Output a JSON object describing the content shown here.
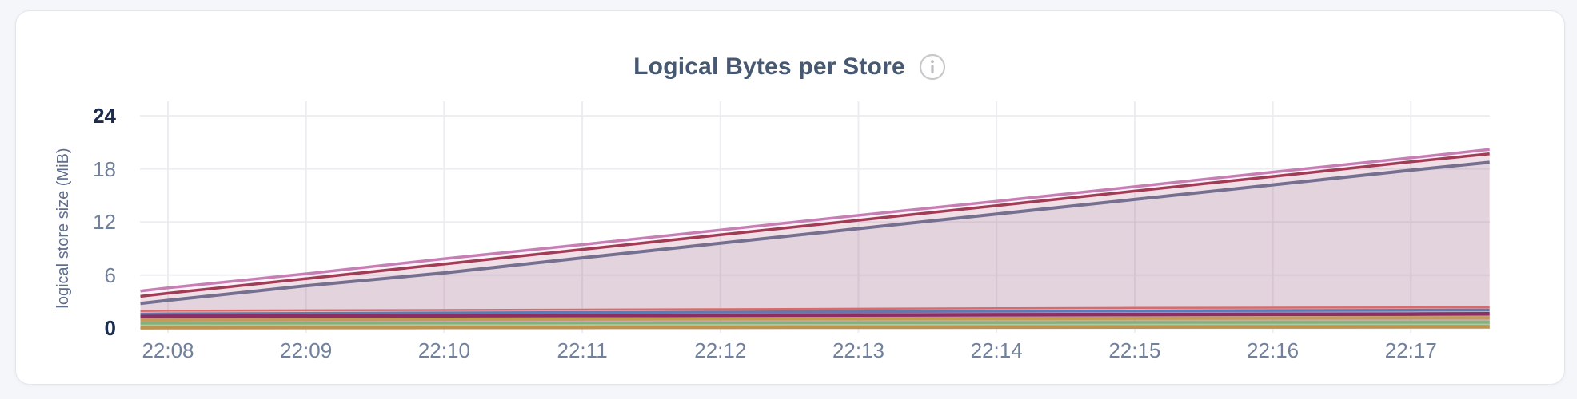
{
  "page": {
    "background": "#f4f6fa"
  },
  "card": {
    "title": "Logical Bytes per Store",
    "info_icon": "info-icon"
  },
  "chart_data": {
    "type": "area",
    "title": "Logical Bytes per Store",
    "xlabel": "",
    "ylabel": "logical store size (MiB)",
    "ylim": [
      0,
      24
    ],
    "grid": true,
    "legend_position": "none",
    "y_ticks": [
      {
        "label": "24",
        "value": 24,
        "bold": true
      },
      {
        "label": "18",
        "value": 18,
        "bold": false
      },
      {
        "label": "12",
        "value": 12,
        "bold": false
      },
      {
        "label": "6",
        "value": 6,
        "bold": false
      },
      {
        "label": "0",
        "value": 0,
        "bold": true
      }
    ],
    "x_tick_labels": [
      "22:08",
      "22:09",
      "22:10",
      "22:11",
      "22:12",
      "22:13",
      "22:14",
      "22:15",
      "22:16",
      "22:17"
    ],
    "x_minutes": [
      7.8,
      8,
      9,
      10,
      11,
      12,
      13,
      14,
      15,
      16,
      17,
      17.57
    ],
    "series": [
      {
        "name": "orchid",
        "color": "#c77eb5",
        "line_width": 3.5,
        "fill_opacity": 0.1,
        "values": [
          4.2,
          4.55,
          6.15,
          7.85,
          9.45,
          11.1,
          12.75,
          14.35,
          16.0,
          17.65,
          19.25,
          20.2
        ]
      },
      {
        "name": "maroon",
        "color": "#a23b55",
        "line_width": 3.5,
        "fill_opacity": 0.1,
        "values": [
          3.6,
          3.95,
          5.6,
          7.25,
          8.9,
          10.55,
          12.2,
          13.85,
          15.5,
          17.15,
          18.8,
          19.7
        ]
      },
      {
        "name": "slate-purple",
        "color": "#75708f",
        "line_width": 4,
        "fill_opacity": 0.1,
        "values": [
          2.8,
          3.15,
          4.8,
          6.25,
          7.95,
          9.6,
          11.25,
          12.9,
          14.55,
          16.2,
          17.85,
          18.75
        ]
      },
      {
        "name": "salmon",
        "color": "#d96a6b",
        "line_width": 2.5,
        "fill_opacity": 0.12,
        "values": [
          1.95,
          1.98,
          2.02,
          2.06,
          2.1,
          2.15,
          2.2,
          2.25,
          2.3,
          2.33,
          2.35,
          2.36
        ]
      },
      {
        "name": "steel-blue",
        "color": "#6179b2",
        "line_width": 3.5,
        "fill_opacity": 0.12,
        "values": [
          1.6,
          1.63,
          1.68,
          1.73,
          1.78,
          1.83,
          1.88,
          1.92,
          1.96,
          2.0,
          2.04,
          2.06
        ]
      },
      {
        "name": "magenta",
        "color": "#8c2d64",
        "line_width": 4.5,
        "fill_opacity": 0.12,
        "values": [
          1.32,
          1.34,
          1.37,
          1.4,
          1.43,
          1.46,
          1.49,
          1.52,
          1.55,
          1.58,
          1.6,
          1.62
        ]
      },
      {
        "name": "tan",
        "color": "#c49b52",
        "line_width": 4,
        "fill_opacity": 0.12,
        "values": [
          0.95,
          0.96,
          0.98,
          1.02,
          1.05,
          1.07,
          1.09,
          1.11,
          1.13,
          1.15,
          1.17,
          1.18
        ]
      },
      {
        "name": "green",
        "color": "#84b17b",
        "line_width": 4,
        "fill_opacity": 0.12,
        "values": [
          0.5,
          0.51,
          0.53,
          0.55,
          0.57,
          0.58,
          0.6,
          0.61,
          0.62,
          0.63,
          0.64,
          0.65
        ]
      },
      {
        "name": "pale-green",
        "color": "#abcba3",
        "line_width": 3,
        "fill_opacity": 0.12,
        "values": [
          0.28,
          0.29,
          0.3,
          0.31,
          0.32,
          0.33,
          0.34,
          0.35,
          0.36,
          0.37,
          0.38,
          0.38
        ]
      },
      {
        "name": "gold",
        "color": "#bd9350",
        "line_width": 4.5,
        "fill_opacity": 0.12,
        "values": [
          0.06,
          0.07,
          0.08,
          0.09,
          0.1,
          0.11,
          0.12,
          0.13,
          0.14,
          0.15,
          0.16,
          0.16
        ]
      }
    ]
  }
}
